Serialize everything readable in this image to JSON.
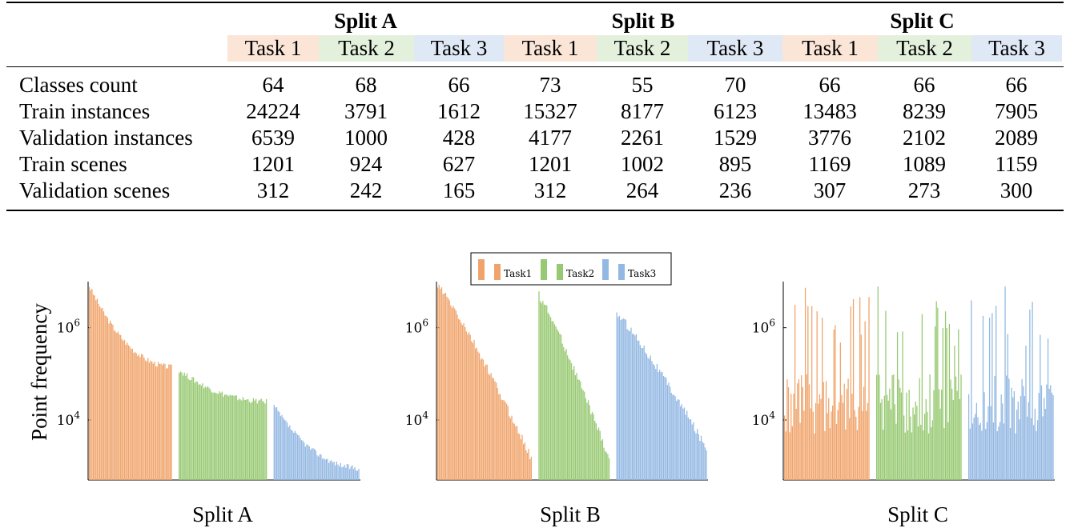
{
  "table": {
    "splits": [
      "Split A",
      "Split B",
      "Split C"
    ],
    "tasks": [
      "Task 1",
      "Task 2",
      "Task 3"
    ],
    "rows": [
      {
        "label": "Classes count",
        "values": [
          "64",
          "68",
          "66",
          "73",
          "55",
          "70",
          "66",
          "66",
          "66"
        ]
      },
      {
        "label": "Train instances",
        "values": [
          "24224",
          "3791",
          "1612",
          "15327",
          "8177",
          "6123",
          "13483",
          "8239",
          "7905"
        ]
      },
      {
        "label": "Validation instances",
        "values": [
          "6539",
          "1000",
          "428",
          "4177",
          "2261",
          "1529",
          "3776",
          "2102",
          "2089"
        ]
      },
      {
        "label": "Train scenes",
        "values": [
          "1201",
          "924",
          "627",
          "1201",
          "1002",
          "895",
          "1169",
          "1089",
          "1159"
        ]
      },
      {
        "label": "Validation scenes",
        "values": [
          "312",
          "242",
          "165",
          "312",
          "264",
          "236",
          "307",
          "273",
          "300"
        ]
      }
    ]
  },
  "chart_data": [
    {
      "type": "bar",
      "title": "Split A",
      "ylabel": "Point frequency",
      "yscale": "log",
      "yticks": [
        {
          "label_base": "10",
          "label_exp": "4",
          "value": 10000
        },
        {
          "label_base": "10",
          "label_exp": "6",
          "value": 1000000
        }
      ],
      "ylim": [
        500,
        10000000
      ],
      "series": [
        {
          "name": "Task1",
          "profile": "decay",
          "count": 64,
          "start": 8000000,
          "end": 140000
        },
        {
          "name": "Task2",
          "profile": "decay",
          "count": 68,
          "start": 120000,
          "end": 25000
        },
        {
          "name": "Task3",
          "profile": "decay",
          "count": 66,
          "start": 20000,
          "end": 900
        }
      ]
    },
    {
      "type": "bar",
      "title": "Split B",
      "yscale": "log",
      "yticks": [
        {
          "label_base": "10",
          "label_exp": "4",
          "value": 10000
        },
        {
          "label_base": "10",
          "label_exp": "6",
          "value": 1000000
        }
      ],
      "ylim": [
        500,
        10000000
      ],
      "legend": {
        "position": "top",
        "entries": [
          "Task1",
          "Task2",
          "Task3"
        ]
      },
      "series": [
        {
          "name": "Task1",
          "profile": "steep",
          "count": 73,
          "start": 8000000,
          "end": 1500
        },
        {
          "name": "Task2",
          "profile": "steep",
          "count": 55,
          "start": 5000000,
          "end": 1500
        },
        {
          "name": "Task3",
          "profile": "steep",
          "count": 70,
          "start": 2000000,
          "end": 2500
        }
      ]
    },
    {
      "type": "bar",
      "title": "Split C",
      "yscale": "log",
      "yticks": [
        {
          "label_base": "10",
          "label_exp": "4",
          "value": 10000
        },
        {
          "label_base": "10",
          "label_exp": "6",
          "value": 1000000
        }
      ],
      "ylim": [
        500,
        10000000
      ],
      "series": [
        {
          "name": "Task1",
          "profile": "spiky",
          "count": 66,
          "start": 8000000,
          "end": 5000
        },
        {
          "name": "Task2",
          "profile": "spiky",
          "count": 66,
          "start": 3000000,
          "end": 4000
        },
        {
          "name": "Task3",
          "profile": "spiky",
          "count": 66,
          "start": 5000000,
          "end": 4000
        }
      ]
    }
  ],
  "colors": {
    "Task1": "#f0a46b",
    "Task2": "#97c972",
    "Task3": "#93b8e3"
  }
}
